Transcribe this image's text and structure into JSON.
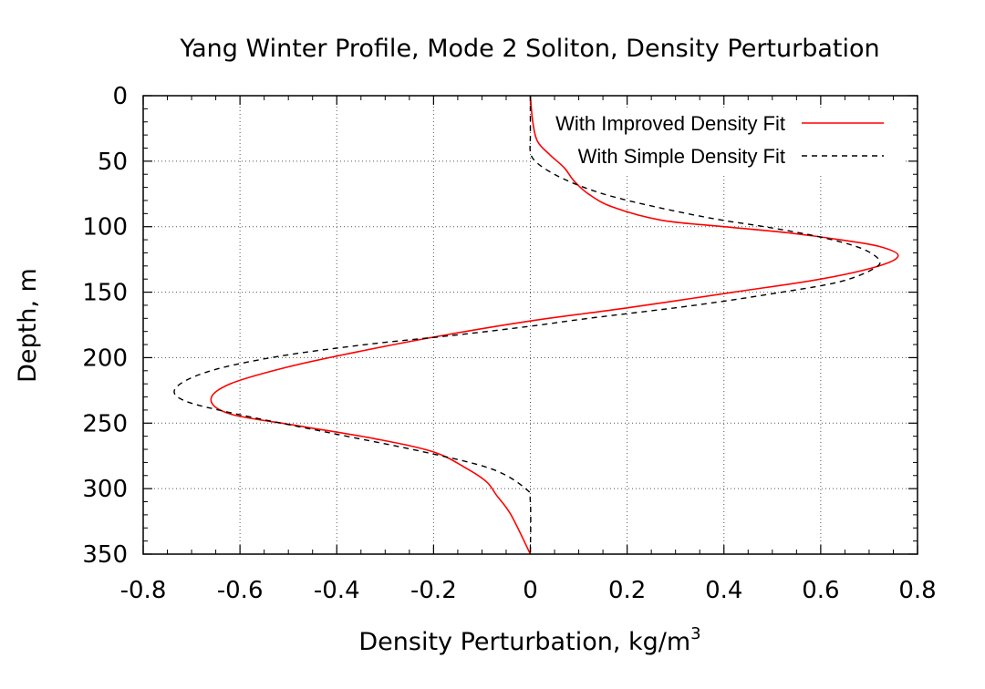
{
  "chart_data": {
    "type": "line",
    "title": "Yang Winter Profile, Mode 2 Soliton, Density Perturbation",
    "xlabel": "Density Perturbation, kg/m",
    "xlabel_superscript": "3",
    "ylabel": "Depth, m",
    "xlim": [
      -0.8,
      0.8
    ],
    "ylim": [
      0,
      350
    ],
    "y_inverted": true,
    "xticks": [
      -0.8,
      -0.6,
      -0.4,
      -0.2,
      0,
      0.2,
      0.4,
      0.6,
      0.8
    ],
    "xtick_labels": [
      "-0.8",
      "-0.6",
      "-0.4",
      "-0.2",
      "0",
      "0.2",
      "0.4",
      "0.6",
      "0.8"
    ],
    "yticks": [
      0,
      50,
      100,
      150,
      200,
      250,
      300,
      350
    ],
    "ytick_labels": [
      "0",
      "50",
      "100",
      "150",
      "200",
      "250",
      "300",
      "350"
    ],
    "grid": true,
    "legend_position": "top-right",
    "series": [
      {
        "name": "With Improved Density Fit",
        "color": "#ff0000",
        "dash": "solid",
        "x": [
          0,
          0.005,
          0.015,
          0.04,
          0.07,
          0.09,
          0.12,
          0.17,
          0.27,
          0.4,
          0.54,
          0.64,
          0.72,
          0.76,
          0.72,
          0.6,
          0.42,
          0.2,
          0.0,
          -0.18,
          -0.35,
          -0.5,
          -0.62,
          -0.66,
          -0.62,
          -0.48,
          -0.32,
          -0.2,
          -0.13,
          -0.09,
          -0.07,
          -0.04,
          0.0
        ],
        "y": [
          0,
          20,
          35,
          45,
          55,
          65,
          75,
          85,
          95,
          100,
          105,
          110,
          115,
          122,
          130,
          140,
          150,
          162,
          172,
          183,
          195,
          207,
          220,
          232,
          243,
          252,
          262,
          272,
          285,
          295,
          305,
          320,
          350
        ]
      },
      {
        "name": "With Simple Density Fit",
        "color": "#000000",
        "dash": "dashed",
        "x": [
          0,
          0.0,
          0.0,
          0.01,
          0.04,
          0.09,
          0.16,
          0.26,
          0.38,
          0.5,
          0.6,
          0.68,
          0.72,
          0.71,
          0.64,
          0.52,
          0.34,
          0.12,
          0.0,
          -0.16,
          -0.34,
          -0.52,
          -0.66,
          -0.73,
          -0.72,
          -0.62,
          -0.42,
          -0.22,
          -0.08,
          -0.01,
          0.0,
          0.0
        ],
        "y": [
          0,
          30,
          43,
          50,
          58,
          67,
          76,
          85,
          94,
          101,
          108,
          116,
          125,
          132,
          142,
          150,
          160,
          170,
          176,
          183,
          190,
          199,
          210,
          222,
          232,
          242,
          257,
          272,
          285,
          300,
          310,
          350
        ]
      }
    ]
  }
}
